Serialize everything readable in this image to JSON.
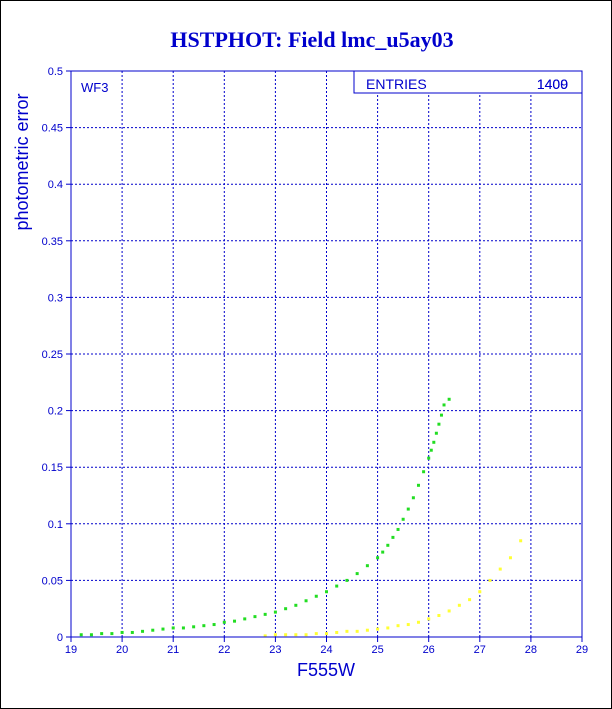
{
  "chart_data": {
    "type": "scatter",
    "title": "HSTPHOT: Field lmc_u5ay03",
    "xlabel": "F555W",
    "ylabel": "photometric error",
    "xlim": [
      19,
      29
    ],
    "ylim": [
      0,
      0.5
    ],
    "xticks": [
      "19",
      "20",
      "21",
      "22",
      "23",
      "24",
      "25",
      "26",
      "27",
      "28",
      "29"
    ],
    "yticks": [
      "0",
      "0.05",
      "0.1",
      "0.15",
      "0.2",
      "0.25",
      "0.3",
      "0.35",
      "0.4",
      "0.45",
      "0.5"
    ],
    "grid": true,
    "corner_label": "WF3",
    "stats": {
      "label": "ENTRIES",
      "value": "1409",
      "overprint": "1400"
    },
    "colors": {
      "axes": "#0000cc",
      "green": "#22dd22",
      "yellow": "#ffff33"
    },
    "series": [
      {
        "color": "green",
        "x": [
          19.2,
          19.4,
          19.6,
          19.8,
          20.0,
          20.2,
          20.4,
          20.6,
          20.8,
          21.0,
          21.2,
          21.4,
          21.6,
          21.8,
          22.0,
          22.2,
          22.4,
          22.6,
          22.8,
          23.0,
          23.2,
          23.4,
          23.6,
          23.8,
          24.0,
          24.2,
          24.4,
          24.6,
          24.8,
          25.0,
          25.1,
          25.2,
          25.3,
          25.4,
          25.5,
          25.6,
          25.7,
          25.8,
          25.9,
          26.0,
          26.05,
          26.1,
          26.15,
          26.2,
          26.25,
          26.3,
          26.4
        ],
        "y": [
          0.002,
          0.002,
          0.003,
          0.003,
          0.004,
          0.004,
          0.005,
          0.006,
          0.007,
          0.008,
          0.008,
          0.009,
          0.01,
          0.011,
          0.013,
          0.014,
          0.016,
          0.018,
          0.02,
          0.022,
          0.025,
          0.028,
          0.032,
          0.036,
          0.04,
          0.045,
          0.05,
          0.056,
          0.063,
          0.07,
          0.075,
          0.081,
          0.088,
          0.095,
          0.104,
          0.113,
          0.123,
          0.134,
          0.146,
          0.158,
          0.165,
          0.172,
          0.18,
          0.188,
          0.196,
          0.205,
          0.21
        ]
      },
      {
        "color": "yellow",
        "x": [
          22.8,
          23.0,
          23.2,
          23.4,
          23.6,
          23.8,
          24.0,
          24.2,
          24.4,
          24.6,
          24.8,
          25.0,
          25.2,
          25.4,
          25.6,
          25.8,
          26.0,
          26.2,
          26.4,
          26.6,
          26.8,
          27.0,
          27.2,
          27.4,
          27.6,
          27.8
        ],
        "y": [
          0.001,
          0.002,
          0.002,
          0.002,
          0.002,
          0.003,
          0.003,
          0.004,
          0.005,
          0.005,
          0.006,
          0.007,
          0.008,
          0.01,
          0.011,
          0.013,
          0.016,
          0.019,
          0.023,
          0.028,
          0.033,
          0.04,
          0.05,
          0.06,
          0.07,
          0.085
        ]
      }
    ]
  }
}
